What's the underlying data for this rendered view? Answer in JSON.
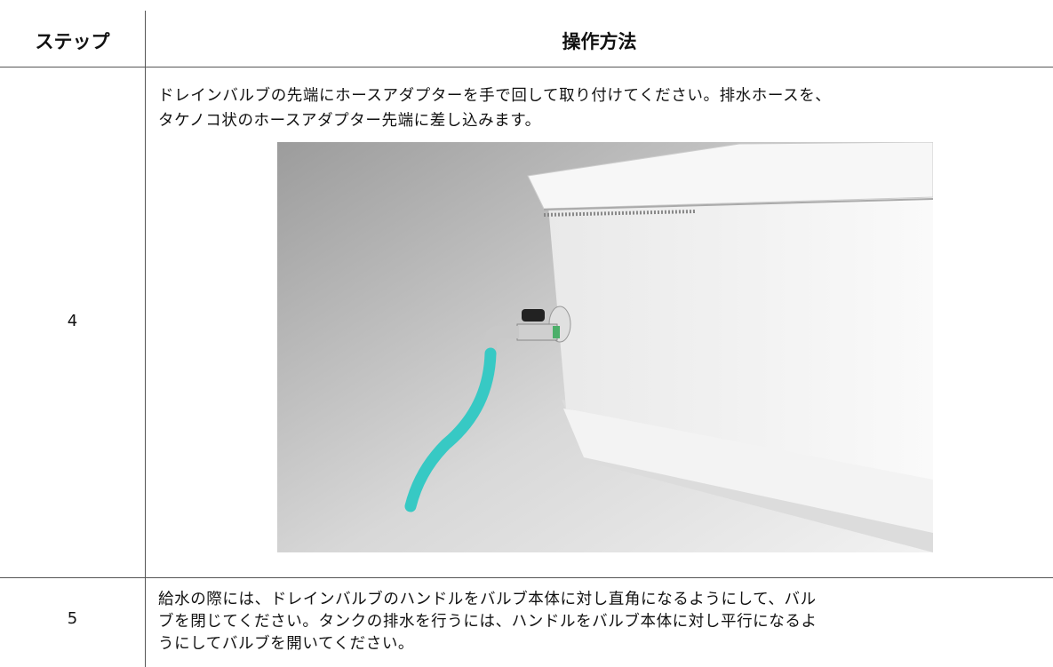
{
  "table": {
    "header": [
      "ステップ",
      "操作方法"
    ],
    "rows": [
      {
        "step": "4",
        "lines": [
          "ドレインバルブの先端にホースアダプターを手で回して取り付けてください。排水ホースを、",
          "タケノコ状のホースアダプター先端に差し込みます。"
        ]
      },
      {
        "step": "5",
        "lines": [
          "給水の際には、ドレインバルブのハンドルをバルブ本体に対し直角になるようにして、バル",
          "ブを閉じてください。タンクの排水を行うには、ハンドルをバルブ本体に対し平行になるよ",
          "うにしてバルブを開いてください。"
        ]
      }
    ]
  }
}
